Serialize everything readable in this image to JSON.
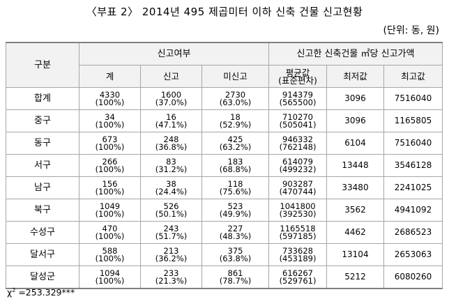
{
  "title": "〈부표 2〉 2014년 495 제곱미터 이하 신축 건물 신고현황",
  "unit": "(단위: 동, 원)",
  "headers": {
    "group": "구분",
    "report_status": "신고여부",
    "price_group": "신고한 신축건물 ㎡당 신고가액",
    "total": "계",
    "reported": "신고",
    "unreported": "미신고",
    "mean_line1": "평균값",
    "mean_line2": "(표준편차)",
    "min": "최저값",
    "max": "최고값"
  },
  "rows": [
    {
      "region": "합계",
      "total": "4330",
      "total_pct": "(100%)",
      "reported": "1600",
      "reported_pct": "(37.0%)",
      "unreported": "2730",
      "unreported_pct": "(63.0%)",
      "mean": "914379",
      "sd": "(565500)",
      "min": "3096",
      "max": "7516040"
    },
    {
      "region": "중구",
      "total": "34",
      "total_pct": "(100%)",
      "reported": "16",
      "reported_pct": "(47.1%)",
      "unreported": "18",
      "unreported_pct": "(52.9%)",
      "mean": "710270",
      "sd": "(505041)",
      "min": "3096",
      "max": "1165805"
    },
    {
      "region": "동구",
      "total": "673",
      "total_pct": "(100%)",
      "reported": "248",
      "reported_pct": "(36.8%)",
      "unreported": "425",
      "unreported_pct": "(63.2%)",
      "mean": "946332",
      "sd": "(762148)",
      "min": "6104",
      "max": "7516040"
    },
    {
      "region": "서구",
      "total": "266",
      "total_pct": "(100%)",
      "reported": "83",
      "reported_pct": "(31.2%)",
      "unreported": "183",
      "unreported_pct": "(68.8%)",
      "mean": "614079",
      "sd": "(499232)",
      "min": "13448",
      "max": "3546128"
    },
    {
      "region": "남구",
      "total": "156",
      "total_pct": "(100%)",
      "reported": "38",
      "reported_pct": "(24.4%)",
      "unreported": "118",
      "unreported_pct": "(75.6%)",
      "mean": "903287",
      "sd": "(470744)",
      "min": "33480",
      "max": "2241025"
    },
    {
      "region": "북구",
      "total": "1049",
      "total_pct": "(100%)",
      "reported": "526",
      "reported_pct": "(50.1%)",
      "unreported": "523",
      "unreported_pct": "(49.9%)",
      "mean": "1041800",
      "sd": "(392530)",
      "min": "3562",
      "max": "4941092"
    },
    {
      "region": "수성구",
      "total": "470",
      "total_pct": "(100%)",
      "reported": "243",
      "reported_pct": "(51.7%)",
      "unreported": "227",
      "unreported_pct": "(48.3%)",
      "mean": "1165518",
      "sd": "(597185)",
      "min": "4462",
      "max": "2686523"
    },
    {
      "region": "달서구",
      "total": "588",
      "total_pct": "(100%)",
      "reported": "213",
      "reported_pct": "(36.2%)",
      "unreported": "375",
      "unreported_pct": "(63.8%)",
      "mean": "733628",
      "sd": "(453189)",
      "min": "13104",
      "max": "2653063"
    },
    {
      "region": "달성군",
      "total": "1094",
      "total_pct": "(100%)",
      "reported": "233",
      "reported_pct": "(21.3%)",
      "unreported": "861",
      "unreported_pct": "(78.7%)",
      "mean": "616267",
      "sd": "(529761)",
      "min": "5212",
      "max": "6080260"
    }
  ],
  "footnote": {
    "symbol": "χ",
    "superscript": "2",
    "value": "=253.329***"
  }
}
